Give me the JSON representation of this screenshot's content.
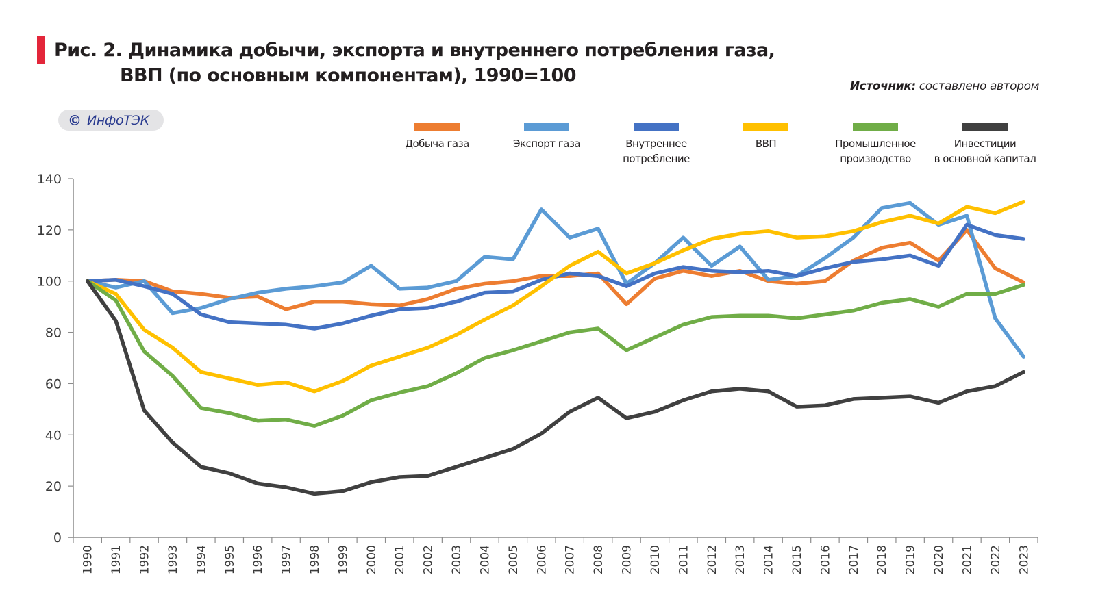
{
  "header": {
    "title_line1": "Рис. 2. Динамика добычи, экспорта и внутреннего потребления газа,",
    "title_line2": "ВВП (по основным компонентам), 1990=100",
    "source_label": "Источник:",
    "source_text": " составлено автором",
    "logo_symbol": "©",
    "logo_text": "ИнфоТЭК"
  },
  "colors": {
    "accent_bar": "#e3263a",
    "logo_text": "#2a3b8f",
    "axis": "#8c8c8c"
  },
  "chart_data": {
    "type": "line",
    "title": "Динамика добычи, экспорта и внутреннего потребления газа, ВВП (по основным компонентам), 1990=100",
    "xlabel": "",
    "ylabel": "",
    "ylim": [
      0,
      140
    ],
    "yticks": [
      0,
      20,
      40,
      60,
      80,
      100,
      120,
      140
    ],
    "grid": false,
    "legend_position": "top-right",
    "x": [
      "1990",
      "1991",
      "1992",
      "1993",
      "1994",
      "1995",
      "1996",
      "1997",
      "1998",
      "1999",
      "2000",
      "2001",
      "2002",
      "2003",
      "2004",
      "2005",
      "2006",
      "2007",
      "2008",
      "2009",
      "2010",
      "2011",
      "2012",
      "2013",
      "2014",
      "2015",
      "2016",
      "2017",
      "2018",
      "2019",
      "2020",
      "2021",
      "2022",
      "2023"
    ],
    "series": [
      {
        "name": "Добыча газа",
        "legend_line1": "Добыча газа",
        "legend_line2": "",
        "color": "#ed7d31",
        "values": [
          100,
          100.5,
          100,
          96,
          95,
          93.5,
          94,
          89,
          92,
          92,
          91,
          90.5,
          93,
          97,
          99,
          100,
          102,
          102,
          103,
          91,
          101,
          104,
          102,
          104,
          100,
          99,
          100,
          108,
          113,
          115,
          108,
          120,
          105,
          99.5
        ]
      },
      {
        "name": "Экспорт газа",
        "legend_line1": "Экспорт газа",
        "legend_line2": "",
        "color": "#5b9bd5",
        "values": [
          100,
          97.5,
          100,
          87.5,
          89.5,
          93,
          95.5,
          97,
          98,
          99.5,
          106,
          97,
          97.5,
          100,
          109.5,
          108.5,
          128,
          117,
          120.5,
          99,
          107,
          117,
          106,
          113.5,
          100.5,
          102,
          109,
          117,
          128.5,
          130.5,
          122,
          125.5,
          85.5,
          70.5
        ]
      },
      {
        "name": "Внутреннее потребление",
        "legend_line1": "Внутреннее",
        "legend_line2": "потребление",
        "color": "#4472c4",
        "values": [
          100,
          100.5,
          98,
          95,
          87,
          84,
          83.5,
          83,
          81.5,
          83.5,
          86.5,
          89,
          89.5,
          92,
          95.5,
          96,
          100.5,
          103,
          102,
          98,
          103,
          105.5,
          104,
          103.5,
          104,
          102,
          105,
          107.5,
          108.5,
          110,
          106,
          122,
          118,
          116.5
        ]
      },
      {
        "name": "ВВП",
        "legend_line1": "ВВП",
        "legend_line2": "",
        "color": "#ffc000",
        "values": [
          100,
          95,
          81,
          74,
          64.5,
          62,
          59.5,
          60.5,
          57,
          61,
          67,
          70.5,
          74,
          79,
          85,
          90.5,
          98,
          106,
          111.5,
          103,
          107,
          112,
          116.5,
          118.5,
          119.5,
          117,
          117.5,
          119.5,
          123,
          125.5,
          122.5,
          129,
          126.5,
          131
        ]
      },
      {
        "name": "Промышленное производство",
        "legend_line1": "Промышленное",
        "legend_line2": "производство",
        "color": "#70ad47",
        "values": [
          100,
          92.5,
          72.5,
          63,
          50.5,
          48.5,
          45.5,
          46,
          43.5,
          47.5,
          53.5,
          56.5,
          59,
          64,
          70,
          73,
          76.5,
          80,
          81.5,
          73,
          78,
          83,
          86,
          86.5,
          86.5,
          85.5,
          87,
          88.5,
          91.5,
          93,
          90,
          95,
          95,
          98.5
        ]
      },
      {
        "name": "Инвестиции в основной капитал",
        "legend_line1": "Инвестиции",
        "legend_line2": "в основной капитал",
        "color": "#404040",
        "values": [
          100,
          84.5,
          49.5,
          37,
          27.5,
          25,
          21,
          19.5,
          17,
          18,
          21.5,
          23.5,
          24,
          27.5,
          31,
          34.5,
          40.5,
          49,
          54.5,
          46.5,
          49,
          53.5,
          57,
          58,
          57,
          51,
          51.5,
          54,
          54.5,
          55,
          52.5,
          57,
          59,
          64.5
        ]
      }
    ]
  }
}
